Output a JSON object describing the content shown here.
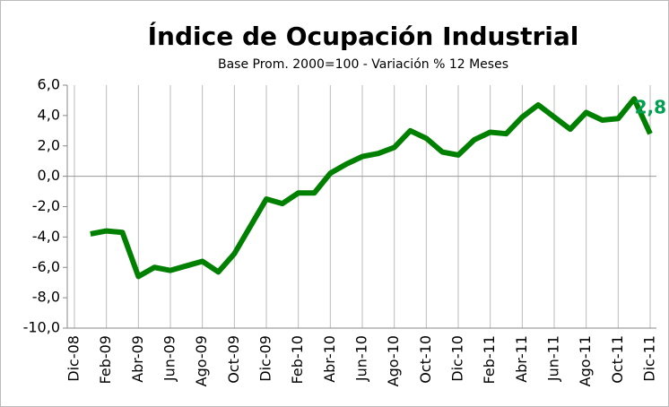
{
  "chart_data": {
    "type": "line",
    "title": "Índice de Ocupación Industrial",
    "subtitle": "Base Prom. 2000=100 - Variación % 12 Meses",
    "categories": [
      "Dic-08",
      null,
      "Feb-09",
      null,
      "Abr-09",
      null,
      "Jun-09",
      null,
      "Ago-09",
      null,
      "Oct-09",
      null,
      "Dic-09",
      null,
      "Feb-10",
      null,
      "Abr-10",
      null,
      "Jun-10",
      null,
      "Ago-10",
      null,
      "Oct-10",
      null,
      "Dic-10",
      null,
      "Feb-11",
      null,
      "Abr-11",
      null,
      "Jun-11",
      null,
      "Ago-11",
      null,
      "Oct-11",
      null,
      "Dic-11"
    ],
    "series": [
      {
        "name": "Índice de Ocupación Industrial",
        "color": "#008000",
        "values": [
          null,
          -3.8,
          -3.6,
          -3.7,
          -6.6,
          -6.0,
          -6.2,
          -5.9,
          -5.6,
          -6.3,
          -5.1,
          -3.3,
          -1.5,
          -1.8,
          -1.1,
          -1.1,
          0.2,
          0.8,
          1.3,
          1.5,
          1.9,
          3.0,
          2.5,
          1.6,
          1.4,
          2.4,
          2.9,
          2.8,
          3.9,
          4.7,
          3.9,
          3.1,
          4.2,
          3.7,
          3.8,
          5.1,
          2.8
        ],
        "value_labels": [
          null,
          null,
          null,
          null,
          null,
          null,
          null,
          null,
          null,
          null,
          null,
          null,
          null,
          null,
          null,
          null,
          null,
          null,
          null,
          null,
          null,
          null,
          null,
          null,
          null,
          null,
          null,
          null,
          null,
          null,
          null,
          null,
          null,
          null,
          null,
          null,
          "2,8"
        ]
      }
    ],
    "ylim": [
      -10,
      6
    ],
    "yticks": [
      {
        "value": -10,
        "label": "-10,0"
      },
      {
        "value": -8,
        "label": "-8,0"
      },
      {
        "value": -6,
        "label": "-6,0"
      },
      {
        "value": -4,
        "label": "-4,0"
      },
      {
        "value": -2,
        "label": "-2,0"
      },
      {
        "value": 0,
        "label": "0,0"
      },
      {
        "value": 2,
        "label": "2,0"
      },
      {
        "value": 4,
        "label": "4,0"
      },
      {
        "value": 6,
        "label": "6,0"
      }
    ],
    "label_color": "#00a050"
  }
}
